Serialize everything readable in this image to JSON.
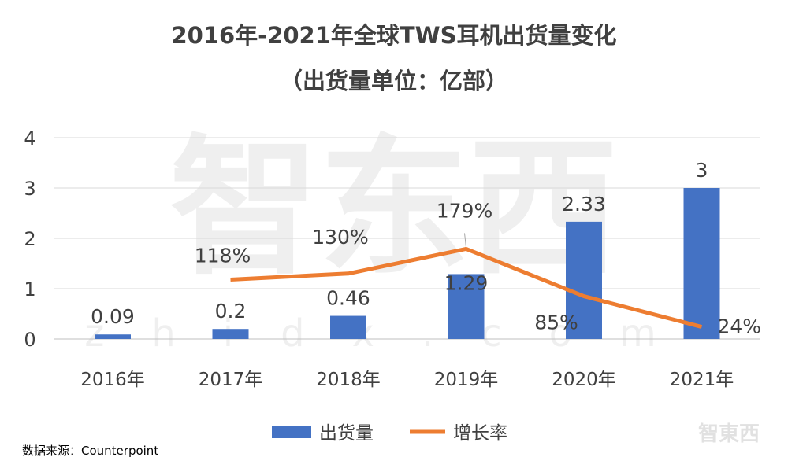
{
  "chart_data": {
    "type": "bar",
    "title": "2016年-2021年全球TWS耳机出货量变化",
    "subtitle": "（出货量单位：亿部）",
    "categories": [
      "2016年",
      "2017年",
      "2018年",
      "2019年",
      "2020年",
      "2021年"
    ],
    "yticks": [
      "0",
      "1",
      "2",
      "3",
      "4"
    ],
    "ylim": [
      0,
      4
    ],
    "grid": true,
    "legend_placement": "bottom",
    "series": [
      {
        "name": "出货量",
        "type": "bar",
        "color": "#4472C4",
        "values": [
          0.09,
          0.2,
          0.46,
          1.29,
          2.33,
          3
        ],
        "labels": [
          "0.09",
          "0.2",
          "0.46",
          "1.29",
          "2.33",
          "3"
        ]
      },
      {
        "name": "增长率",
        "type": "line",
        "color": "#ED7D31",
        "values": [
          null,
          118,
          130,
          179,
          85,
          24
        ],
        "labels": [
          "",
          "118%",
          "130%",
          "179%",
          "85%",
          "24%"
        ]
      }
    ],
    "source": "数据来源：Counterpoint",
    "watermark": "智东西 zhidx.com"
  }
}
